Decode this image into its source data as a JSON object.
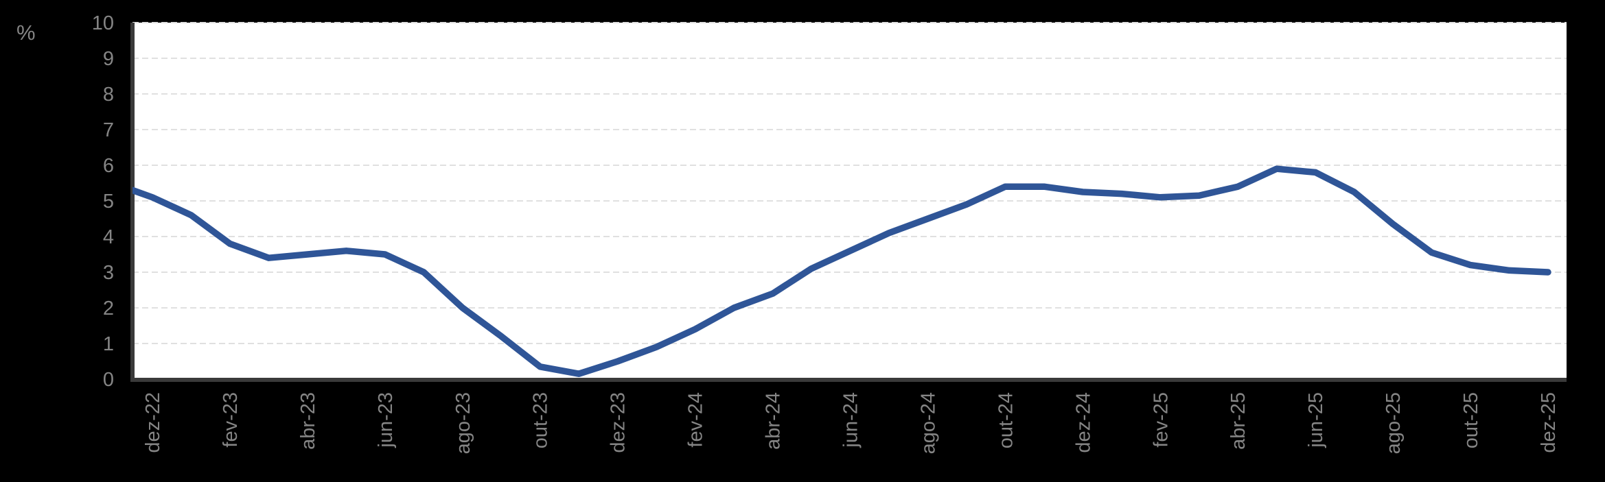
{
  "chart_data": {
    "type": "line",
    "title": "",
    "ylabel": "%",
    "xlabel": "",
    "ylim": [
      0,
      10
    ],
    "y_ticks": [
      0,
      1,
      2,
      3,
      4,
      5,
      6,
      7,
      8,
      9,
      10
    ],
    "grid": "horizontal-dashed",
    "legend": "none",
    "x_label_interval": 2,
    "x": [
      "dez-22",
      "jan-23",
      "fev-23",
      "mar-23",
      "abr-23",
      "mai-23",
      "jun-23",
      "jul-23",
      "ago-23",
      "set-23",
      "out-23",
      "nov-23",
      "dez-23",
      "jan-24",
      "fev-24",
      "mar-24",
      "abr-24",
      "mai-24",
      "jun-24",
      "jul-24",
      "ago-24",
      "set-24",
      "out-24",
      "nov-24",
      "dez-24",
      "jan-25",
      "fev-25",
      "mar-25",
      "abr-25",
      "mai-25",
      "jun-25",
      "jul-25",
      "ago-25",
      "set-25",
      "out-25",
      "nov-25",
      "dez-25"
    ],
    "values": [
      5.1,
      4.6,
      3.8,
      3.4,
      3.5,
      3.6,
      3.5,
      3.0,
      2.0,
      1.2,
      0.35,
      0.15,
      0.5,
      0.9,
      1.4,
      2.0,
      2.4,
      3.1,
      3.6,
      4.1,
      4.5,
      4.9,
      5.4,
      5.4,
      5.25,
      5.2,
      5.1,
      5.15,
      5.4,
      5.9,
      5.8,
      5.25,
      4.35,
      3.55,
      3.2,
      3.05,
      3.0
    ],
    "left_edge_clip_value": 5.3
  },
  "colors": {
    "background": "#000000",
    "plot_background": "#ffffff",
    "gridline": "#e0e0e0",
    "axis_line": "#3a3a3a",
    "tick_label": "#858585",
    "series_line": "#2f5597"
  }
}
